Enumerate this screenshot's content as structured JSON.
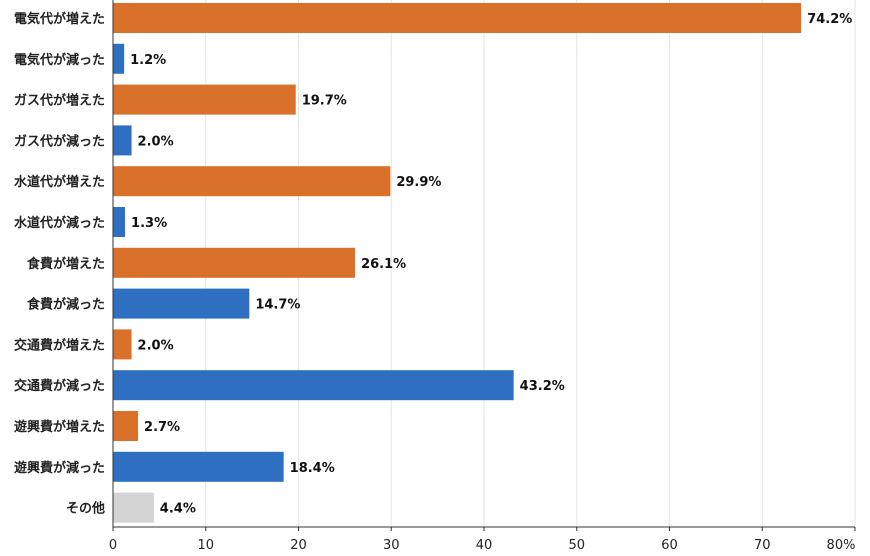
{
  "chart_data": {
    "type": "bar",
    "orientation": "horizontal",
    "categories": [
      "電気代が増えた",
      "電気代が減った",
      "ガス代が増えた",
      "ガス代が減った",
      "水道代が増えた",
      "水道代が減った",
      "食費が増えた",
      "食費が減った",
      "交通費が増えた",
      "交通費が減った",
      "遊興費が増えた",
      "遊興費が減った",
      "その他"
    ],
    "values": [
      74.2,
      1.2,
      19.7,
      2.0,
      29.9,
      1.3,
      26.1,
      14.7,
      2.0,
      43.2,
      2.7,
      18.4,
      4.4
    ],
    "value_labels": [
      "74.2%",
      "1.2%",
      "19.7%",
      "2.0%",
      "29.9%",
      "1.3%",
      "26.1%",
      "14.7%",
      "2.0%",
      "43.2%",
      "2.7%",
      "18.4%",
      "4.4%"
    ],
    "bar_kind": [
      "increase",
      "decrease",
      "increase",
      "decrease",
      "increase",
      "decrease",
      "increase",
      "decrease",
      "increase",
      "decrease",
      "increase",
      "decrease",
      "other"
    ],
    "xlim": [
      0,
      80
    ],
    "x_ticks": [
      "0",
      "10",
      "20",
      "30",
      "40",
      "50",
      "60",
      "70",
      "80%"
    ],
    "grid": true,
    "colors": {
      "increase": "#d9712b",
      "decrease": "#2f6fc2",
      "other": "#d4d4d4"
    }
  }
}
